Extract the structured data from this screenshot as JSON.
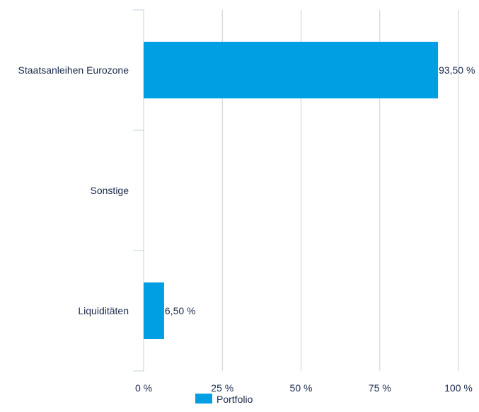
{
  "chart_data": {
    "type": "bar",
    "orientation": "horizontal",
    "categories": [
      "Staatsanleihen Eurozone",
      "Sonstige",
      "Liquiditäten"
    ],
    "series": [
      {
        "name": "Portfolio",
        "color": "#009fe3",
        "values": [
          93.5,
          0,
          6.5
        ],
        "labels": [
          "93,50 %",
          "",
          "6,50 %"
        ]
      }
    ],
    "xlim": [
      0,
      100
    ],
    "xticks": [
      0,
      25,
      50,
      75,
      100
    ],
    "xtick_labels": [
      "0 %",
      "25 %",
      "50 %",
      "75 %",
      "100 %"
    ],
    "grid": true,
    "legend": "bottom-center"
  }
}
